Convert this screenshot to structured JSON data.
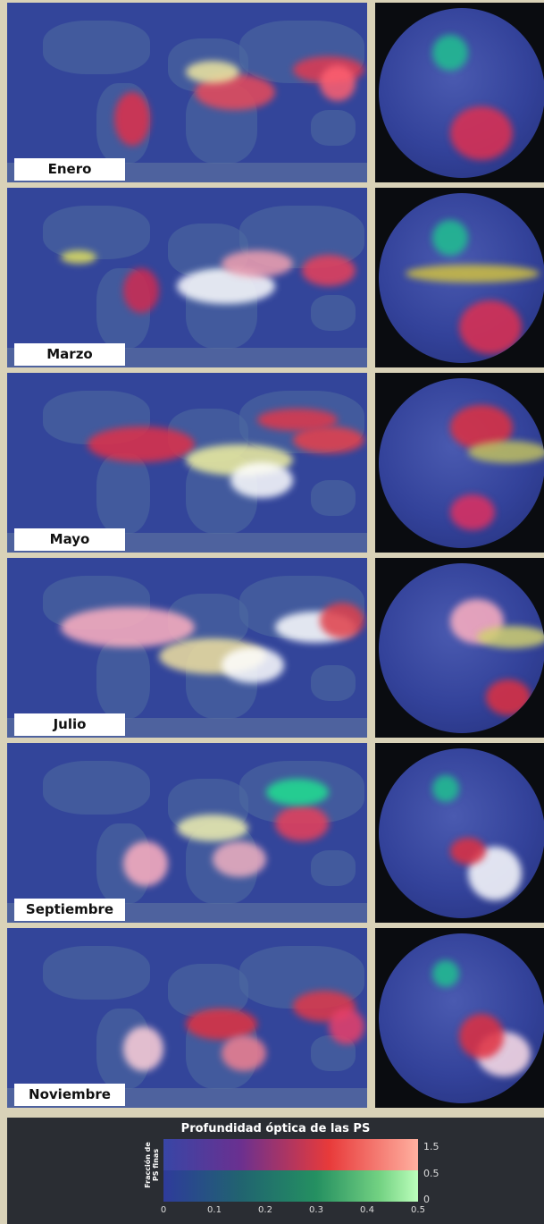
{
  "panels": [
    {
      "month": "Enero"
    },
    {
      "month": "Marzo"
    },
    {
      "month": "Mayo"
    },
    {
      "month": "Julio"
    },
    {
      "month": "Septiembre"
    },
    {
      "month": "Noviembre"
    }
  ],
  "legend": {
    "title": "Profundidad óptica de las PS",
    "ylabel_line1": "Fracción de",
    "ylabel_line2": "PS finas",
    "x_ticks": [
      "0",
      "0.1",
      "0.2",
      "0.3",
      "0.4",
      "0.5"
    ],
    "y_ticks": [
      "1.5",
      "0.5",
      "0"
    ]
  },
  "colors": {
    "ocean": "#33459a",
    "background": "#d9d2b8",
    "legend_bg": "#2a2d33"
  }
}
